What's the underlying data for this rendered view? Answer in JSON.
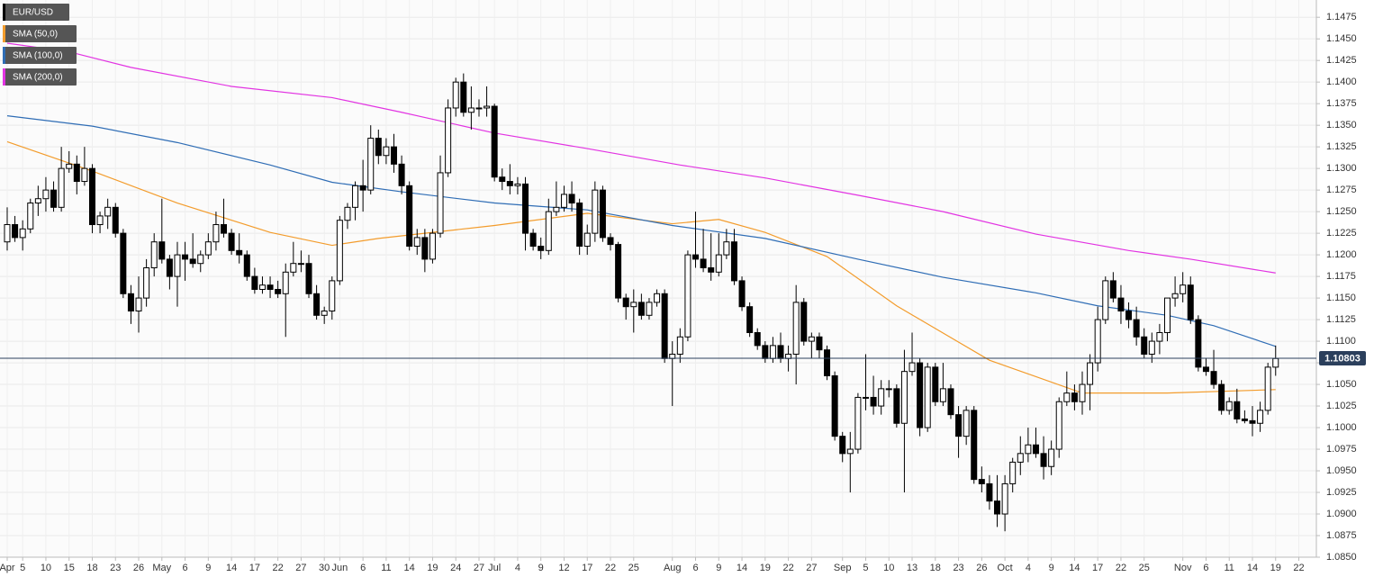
{
  "chart_data": {
    "type": "candlestick",
    "name": "EUR/USD",
    "color": "#000000",
    "categories": [
      "Apr",
      null,
      "5",
      null,
      null,
      "10",
      null,
      null,
      "15",
      null,
      null,
      "18",
      null,
      null,
      "23",
      null,
      null,
      "26",
      null,
      null,
      "May",
      null,
      null,
      "6",
      null,
      null,
      "9",
      null,
      null,
      "14",
      null,
      null,
      "17",
      null,
      null,
      "22",
      null,
      null,
      "27",
      null,
      null,
      "30",
      null,
      "Jun",
      null,
      null,
      "6",
      null,
      null,
      "11",
      null,
      null,
      "14",
      null,
      null,
      "19",
      null,
      null,
      "24",
      null,
      null,
      "27",
      null,
      "Jul",
      null,
      null,
      "4",
      null,
      null,
      "9",
      null,
      null,
      "12",
      null,
      null,
      "17",
      null,
      null,
      "22",
      null,
      null,
      "25",
      null,
      null,
      null,
      null,
      "Aug",
      null,
      null,
      "6",
      null,
      null,
      "9",
      null,
      null,
      "14",
      null,
      null,
      "19",
      null,
      null,
      "22",
      null,
      null,
      "27",
      null,
      null,
      null,
      "Sep",
      null,
      null,
      "5",
      null,
      null,
      "10",
      null,
      null,
      "13",
      null,
      null,
      "18",
      null,
      null,
      "23",
      null,
      null,
      "26",
      null,
      null,
      "Oct",
      null,
      null,
      "4",
      null,
      null,
      "9",
      null,
      null,
      "14",
      null,
      null,
      "17",
      null,
      null,
      "22",
      null,
      null,
      "25",
      null,
      null,
      null,
      null,
      "Nov",
      null,
      null,
      "6",
      null,
      null,
      "11",
      null,
      null,
      "14",
      null,
      null,
      "19",
      null,
      null,
      "22"
    ],
    "ohlc": [
      [
        1.1215,
        1.1255,
        1.1205,
        1.1235
      ],
      [
        1.1235,
        1.1245,
        1.1215,
        1.122
      ],
      [
        1.122,
        1.124,
        1.1205,
        1.123
      ],
      [
        1.123,
        1.1265,
        1.1225,
        1.126
      ],
      [
        1.126,
        1.128,
        1.1245,
        1.1265
      ],
      [
        1.1265,
        1.129,
        1.125,
        1.1275
      ],
      [
        1.1275,
        1.1285,
        1.125,
        1.1255
      ],
      [
        1.1255,
        1.1325,
        1.125,
        1.13
      ],
      [
        1.13,
        1.132,
        1.1295,
        1.1305
      ],
      [
        1.1305,
        1.1315,
        1.127,
        1.1285
      ],
      [
        1.1285,
        1.1325,
        1.128,
        1.13
      ],
      [
        1.13,
        1.1305,
        1.1225,
        1.1235
      ],
      [
        1.1235,
        1.125,
        1.1225,
        1.1245
      ],
      [
        1.1245,
        1.1265,
        1.123,
        1.1255
      ],
      [
        1.1255,
        1.126,
        1.122,
        1.1225
      ],
      [
        1.1225,
        1.123,
        1.115,
        1.1155
      ],
      [
        1.1155,
        1.1165,
        1.112,
        1.1135
      ],
      [
        1.1135,
        1.1175,
        1.111,
        1.115
      ],
      [
        1.115,
        1.1195,
        1.114,
        1.1185
      ],
      [
        1.1185,
        1.1225,
        1.1175,
        1.1215
      ],
      [
        1.1215,
        1.1265,
        1.119,
        1.1195
      ],
      [
        1.1195,
        1.12,
        1.116,
        1.1175
      ],
      [
        1.1175,
        1.1215,
        1.114,
        1.12
      ],
      [
        1.12,
        1.1215,
        1.117,
        1.1195
      ],
      [
        1.1195,
        1.1225,
        1.1185,
        1.119
      ],
      [
        1.119,
        1.1205,
        1.118,
        1.12
      ],
      [
        1.12,
        1.1225,
        1.1195,
        1.1215
      ],
      [
        1.1215,
        1.125,
        1.1205,
        1.1235
      ],
      [
        1.1235,
        1.1265,
        1.122,
        1.1225
      ],
      [
        1.1225,
        1.123,
        1.12,
        1.1205
      ],
      [
        1.1205,
        1.1225,
        1.119,
        1.12
      ],
      [
        1.12,
        1.1205,
        1.117,
        1.1175
      ],
      [
        1.1175,
        1.1185,
        1.1155,
        1.116
      ],
      [
        1.116,
        1.1175,
        1.1155,
        1.1165
      ],
      [
        1.1165,
        1.1175,
        1.115,
        1.116
      ],
      [
        1.116,
        1.117,
        1.115,
        1.1155
      ],
      [
        1.1155,
        1.119,
        1.1105,
        1.118
      ],
      [
        1.118,
        1.1215,
        1.1175,
        1.119
      ],
      [
        1.119,
        1.1205,
        1.118,
        1.119
      ],
      [
        1.119,
        1.12,
        1.115,
        1.1155
      ],
      [
        1.1155,
        1.1165,
        1.1125,
        1.113
      ],
      [
        1.113,
        1.114,
        1.112,
        1.1135
      ],
      [
        1.1135,
        1.1175,
        1.1125,
        1.117
      ],
      [
        1.117,
        1.1245,
        1.1165,
        1.124
      ],
      [
        1.124,
        1.126,
        1.123,
        1.1255
      ],
      [
        1.1255,
        1.1285,
        1.124,
        1.128
      ],
      [
        1.128,
        1.131,
        1.125,
        1.1275
      ],
      [
        1.1275,
        1.135,
        1.127,
        1.1335
      ],
      [
        1.1335,
        1.1345,
        1.1305,
        1.1315
      ],
      [
        1.1315,
        1.1335,
        1.1305,
        1.1325
      ],
      [
        1.1325,
        1.134,
        1.1295,
        1.1305
      ],
      [
        1.1305,
        1.1315,
        1.127,
        1.128
      ],
      [
        1.128,
        1.1285,
        1.1205,
        1.121
      ],
      [
        1.121,
        1.123,
        1.12,
        1.122
      ],
      [
        1.122,
        1.123,
        1.118,
        1.1195
      ],
      [
        1.1195,
        1.123,
        1.119,
        1.1225
      ],
      [
        1.1225,
        1.1315,
        1.122,
        1.1295
      ],
      [
        1.1295,
        1.138,
        1.129,
        1.137
      ],
      [
        1.137,
        1.1405,
        1.136,
        1.14
      ],
      [
        1.14,
        1.141,
        1.136,
        1.1365
      ],
      [
        1.1365,
        1.1395,
        1.1345,
        1.137
      ],
      [
        1.137,
        1.138,
        1.136,
        1.137
      ],
      [
        1.137,
        1.1395,
        1.136,
        1.1372
      ],
      [
        1.1372,
        1.1375,
        1.1285,
        1.129
      ],
      [
        1.129,
        1.13,
        1.1275,
        1.1285
      ],
      [
        1.1285,
        1.1305,
        1.127,
        1.128
      ],
      [
        1.128,
        1.129,
        1.127,
        1.1282
      ],
      [
        1.1282,
        1.129,
        1.1205,
        1.1225
      ],
      [
        1.1225,
        1.123,
        1.1205,
        1.121
      ],
      [
        1.121,
        1.122,
        1.1195,
        1.1205
      ],
      [
        1.1205,
        1.1265,
        1.12,
        1.125
      ],
      [
        1.125,
        1.1285,
        1.1245,
        1.1255
      ],
      [
        1.1255,
        1.128,
        1.125,
        1.127
      ],
      [
        1.127,
        1.1285,
        1.125,
        1.126
      ],
      [
        1.126,
        1.1265,
        1.12,
        1.121
      ],
      [
        1.121,
        1.1235,
        1.12,
        1.1225
      ],
      [
        1.1225,
        1.1285,
        1.1215,
        1.1275
      ],
      [
        1.1275,
        1.128,
        1.1215,
        1.122
      ],
      [
        1.122,
        1.1225,
        1.1205,
        1.1212
      ],
      [
        1.1212,
        1.1215,
        1.1145,
        1.115
      ],
      [
        1.115,
        1.1155,
        1.1125,
        1.114
      ],
      [
        1.114,
        1.116,
        1.111,
        1.1145
      ],
      [
        1.1145,
        1.1155,
        1.1125,
        1.113
      ],
      [
        1.113,
        1.115,
        1.1125,
        1.1145
      ],
      [
        1.1145,
        1.116,
        1.114,
        1.1155
      ],
      [
        1.1155,
        1.116,
        1.1075,
        1.108
      ],
      [
        1.108,
        1.11,
        1.1025,
        1.1085
      ],
      [
        1.1085,
        1.1115,
        1.1075,
        1.1105
      ],
      [
        1.1105,
        1.1205,
        1.11,
        1.12
      ],
      [
        1.12,
        1.125,
        1.1185,
        1.1195
      ],
      [
        1.1195,
        1.123,
        1.118,
        1.1185
      ],
      [
        1.1185,
        1.1225,
        1.117,
        1.118
      ],
      [
        1.118,
        1.1225,
        1.1175,
        1.12
      ],
      [
        1.12,
        1.123,
        1.1195,
        1.1215
      ],
      [
        1.1215,
        1.123,
        1.1165,
        1.117
      ],
      [
        1.117,
        1.1175,
        1.1135,
        1.114
      ],
      [
        1.114,
        1.1145,
        1.1105,
        1.111
      ],
      [
        1.111,
        1.1115,
        1.109,
        1.1095
      ],
      [
        1.1095,
        1.11,
        1.1075,
        1.108
      ],
      [
        1.108,
        1.1105,
        1.1075,
        1.1095
      ],
      [
        1.1095,
        1.111,
        1.1075,
        1.108
      ],
      [
        1.108,
        1.1095,
        1.1065,
        1.1085
      ],
      [
        1.1085,
        1.1165,
        1.105,
        1.1145
      ],
      [
        1.1145,
        1.115,
        1.1095,
        1.11
      ],
      [
        1.11,
        1.111,
        1.108,
        1.1105
      ],
      [
        1.1105,
        1.111,
        1.108,
        1.109
      ],
      [
        1.109,
        1.1095,
        1.1055,
        1.106
      ],
      [
        1.106,
        1.1065,
        1.0985,
        1.099
      ],
      [
        1.099,
        1.0995,
        1.096,
        1.097
      ],
      [
        1.097,
        1.0995,
        1.0925,
        1.0975
      ],
      [
        1.0975,
        1.104,
        1.097,
        1.1035
      ],
      [
        1.1035,
        1.1085,
        1.102,
        1.1035
      ],
      [
        1.1035,
        1.106,
        1.1015,
        1.1025
      ],
      [
        1.1025,
        1.1055,
        1.1015,
        1.1045
      ],
      [
        1.1045,
        1.1055,
        1.1035,
        1.1045
      ],
      [
        1.1045,
        1.105,
        1.1,
        1.1005
      ],
      [
        1.1005,
        1.109,
        1.0925,
        1.1065
      ],
      [
        1.1065,
        1.111,
        1.106,
        1.1075
      ],
      [
        1.1075,
        1.108,
        1.099,
        1.1
      ],
      [
        1.1,
        1.1075,
        1.0995,
        1.107
      ],
      [
        1.107,
        1.1075,
        1.1025,
        1.103
      ],
      [
        1.103,
        1.1075,
        1.1025,
        1.1045
      ],
      [
        1.1045,
        1.105,
        1.101,
        1.1015
      ],
      [
        1.1015,
        1.1025,
        1.0965,
        1.099
      ],
      [
        1.099,
        1.1025,
        1.098,
        1.102
      ],
      [
        1.102,
        1.1025,
        1.0935,
        1.094
      ],
      [
        1.094,
        1.0955,
        1.0925,
        1.0935
      ],
      [
        1.0935,
        1.0945,
        1.0905,
        1.0915
      ],
      [
        1.0915,
        1.0945,
        1.0885,
        1.09
      ],
      [
        1.09,
        1.0945,
        1.088,
        1.0935
      ],
      [
        1.0935,
        1.0965,
        1.0925,
        1.096
      ],
      [
        1.096,
        1.099,
        1.0945,
        1.097
      ],
      [
        1.097,
        1.1,
        1.096,
        1.098
      ],
      [
        1.098,
        1.1,
        1.0965,
        1.097
      ],
      [
        1.097,
        1.099,
        1.094,
        1.0955
      ],
      [
        1.0955,
        1.0985,
        1.0945,
        1.0975
      ],
      [
        1.0975,
        1.1035,
        1.0965,
        1.103
      ],
      [
        1.103,
        1.1065,
        1.1025,
        1.104
      ],
      [
        1.104,
        1.105,
        1.102,
        1.103
      ],
      [
        1.103,
        1.1065,
        1.1015,
        1.105
      ],
      [
        1.105,
        1.1085,
        1.102,
        1.1075
      ],
      [
        1.1075,
        1.114,
        1.1065,
        1.1125
      ],
      [
        1.1125,
        1.1175,
        1.112,
        1.117
      ],
      [
        1.117,
        1.118,
        1.1145,
        1.115
      ],
      [
        1.115,
        1.1165,
        1.112,
        1.1135
      ],
      [
        1.1135,
        1.1145,
        1.1115,
        1.1125
      ],
      [
        1.1125,
        1.114,
        1.1095,
        1.1105
      ],
      [
        1.1105,
        1.1115,
        1.108,
        1.1085
      ],
      [
        1.1085,
        1.111,
        1.1075,
        1.11
      ],
      [
        1.11,
        1.112,
        1.1085,
        1.111
      ],
      [
        1.111,
        1.115,
        1.11,
        1.115
      ],
      [
        1.115,
        1.1175,
        1.114,
        1.1155
      ],
      [
        1.1155,
        1.118,
        1.1145,
        1.1165
      ],
      [
        1.1165,
        1.1175,
        1.112,
        1.1125
      ],
      [
        1.1125,
        1.113,
        1.1065,
        1.107
      ],
      [
        1.107,
        1.108,
        1.106,
        1.1065
      ],
      [
        1.1065,
        1.109,
        1.1045,
        1.105
      ],
      [
        1.105,
        1.1055,
        1.1015,
        1.102
      ],
      [
        1.102,
        1.1035,
        1.1015,
        1.103
      ],
      [
        1.103,
        1.1045,
        1.1005,
        1.101
      ],
      [
        1.101,
        1.102,
        1.1005,
        1.1008
      ],
      [
        1.1008,
        1.1025,
        1.099,
        1.1005
      ],
      [
        1.1005,
        1.103,
        1.0995,
        1.102
      ],
      [
        1.102,
        1.1075,
        1.1015,
        1.107
      ],
      [
        1.107,
        1.1095,
        1.106,
        1.108
      ],
      null,
      null,
      null
    ],
    "series": [
      {
        "name": "SMA (50,0)",
        "color": "#f39c2c",
        "x": [
          0,
          11,
          22,
          34,
          42,
          48,
          63,
          75,
          86,
          92,
          98,
          106,
          115,
          127,
          139,
          150,
          164
        ],
        "values": [
          1.1331,
          1.1297,
          1.126,
          1.1226,
          1.1211,
          1.1219,
          1.1234,
          1.1248,
          1.1236,
          1.1241,
          1.1226,
          1.1198,
          1.1141,
          1.1078,
          1.104,
          1.104,
          1.1044
        ]
      },
      {
        "name": "SMA (100,0)",
        "color": "#2f6db5",
        "x": [
          0,
          11,
          22,
          34,
          42,
          51,
          63,
          75,
          86,
          98,
          110,
          121,
          133,
          141,
          150,
          156,
          164
        ],
        "values": [
          1.1361,
          1.1349,
          1.133,
          1.1304,
          1.1284,
          1.1273,
          1.126,
          1.1252,
          1.1234,
          1.1219,
          1.1195,
          1.1174,
          1.1156,
          1.1141,
          1.113,
          1.1118,
          1.1094
        ]
      },
      {
        "name": "SMA (200,0)",
        "color": "#e233e2",
        "x": [
          0,
          8,
          16,
          29,
          42,
          51,
          63,
          75,
          87,
          98,
          110,
          121,
          133,
          145,
          153,
          164
        ],
        "values": [
          1.1445,
          1.1435,
          1.1417,
          1.1395,
          1.1382,
          1.1365,
          1.1341,
          1.1323,
          1.1304,
          1.1289,
          1.1269,
          1.125,
          1.1224,
          1.1205,
          1.1195,
          1.1179
        ]
      }
    ],
    "last_price": 1.10803,
    "ylim": [
      1.085,
      1.1495
    ],
    "yticks": [
      {
        "value": 1.085,
        "label": "1.0850"
      },
      {
        "value": 1.0875,
        "label": "1.0875"
      },
      {
        "value": 1.09,
        "label": "1.0900"
      },
      {
        "value": 1.0925,
        "label": "1.0925"
      },
      {
        "value": 1.095,
        "label": "1.0950"
      },
      {
        "value": 1.0975,
        "label": "1.0975"
      },
      {
        "value": 1.1,
        "label": "1.1000"
      },
      {
        "value": 1.1025,
        "label": "1.1025"
      },
      {
        "value": 1.105,
        "label": "1.1050"
      },
      {
        "value": 1.1075,
        "label": "1.1075"
      },
      {
        "value": 1.11,
        "label": "1.1100"
      },
      {
        "value": 1.1125,
        "label": "1.1125"
      },
      {
        "value": 1.115,
        "label": "1.1150"
      },
      {
        "value": 1.1175,
        "label": "1.1175"
      },
      {
        "value": 1.12,
        "label": "1.1200"
      },
      {
        "value": 1.1225,
        "label": "1.1225"
      },
      {
        "value": 1.125,
        "label": "1.1250"
      },
      {
        "value": 1.1275,
        "label": "1.1275"
      },
      {
        "value": 1.13,
        "label": "1.1300"
      },
      {
        "value": 1.1325,
        "label": "1.1325"
      },
      {
        "value": 1.135,
        "label": "1.1350"
      },
      {
        "value": 1.1375,
        "label": "1.1375"
      },
      {
        "value": 1.14,
        "label": "1.1400"
      },
      {
        "value": 1.1425,
        "label": "1.1425"
      },
      {
        "value": 1.145,
        "label": "1.1450"
      },
      {
        "value": 1.1475,
        "label": "1.1475"
      }
    ],
    "grid": true,
    "legend": "top-left"
  }
}
